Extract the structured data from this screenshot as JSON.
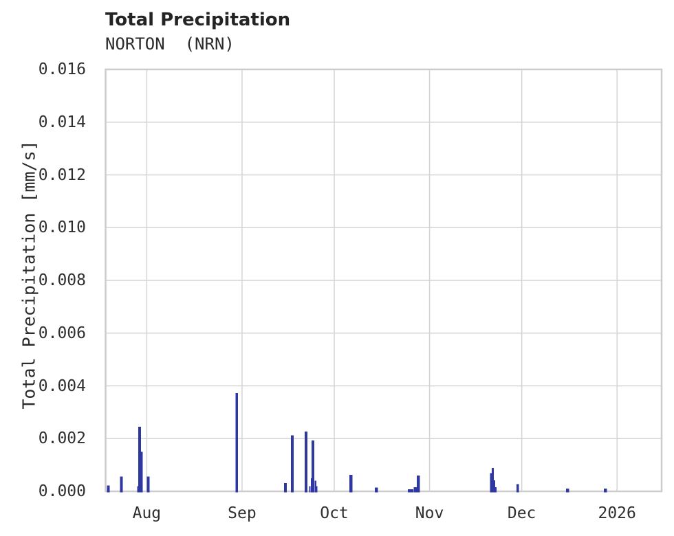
{
  "header": {
    "title": "Total Precipitation",
    "subtitle": "NORTON  (NRN)"
  },
  "chart_data": {
    "type": "bar",
    "title": "Total Precipitation",
    "subtitle": "NORTON  (NRN)",
    "xlabel": "",
    "ylabel": "Total Precipitation [mm/s]",
    "grid": true,
    "legend": false,
    "y_axis": {
      "min": 0,
      "max": 0.016,
      "tick_step": 0.002,
      "tick_labels": [
        "0.000",
        "0.002",
        "0.004",
        "0.006",
        "0.008",
        "0.010",
        "0.012",
        "0.014",
        "0.016"
      ]
    },
    "x_axis": {
      "tick_labels": [
        "Aug",
        "Sep",
        "Oct",
        "Nov",
        "Dec",
        "2026"
      ],
      "tick_day_offsets": [
        0,
        31,
        61,
        92,
        122,
        153
      ],
      "domain_days": [
        -13.4,
        167.5
      ],
      "reference": "day offset 0 = Aug 1, 2025"
    },
    "colors": {
      "bar": "#2e38a0",
      "grid": "#d4d4d4",
      "border": "#cccccc",
      "text": "#2f2f2f"
    },
    "points": [
      {
        "date": "2025-07-19",
        "day": -12.5,
        "value": 0.00022,
        "w": 0.9
      },
      {
        "date": "2025-07-24",
        "day": -8.2,
        "value": 0.00056,
        "w": 0.9
      },
      {
        "date": "2025-07-29",
        "day": -2.9,
        "value": 0.0002,
        "w": 0.45
      },
      {
        "date": "2025-07-30",
        "day": -2.3,
        "value": 0.00245,
        "w": 0.9
      },
      {
        "date": "2025-07-30",
        "day": -1.6,
        "value": 0.0015,
        "w": 0.56
      },
      {
        "date": "2025-08-01",
        "day": 0.5,
        "value": 0.00056,
        "w": 0.9
      },
      {
        "date": "2025-08-30",
        "day": 29.3,
        "value": 0.00373,
        "w": 0.8
      },
      {
        "date": "2025-09-15",
        "day": 45.1,
        "value": 0.00031,
        "w": 0.9
      },
      {
        "date": "2025-09-17",
        "day": 47.3,
        "value": 0.00212,
        "w": 0.9
      },
      {
        "date": "2025-09-22",
        "day": 51.8,
        "value": 0.00227,
        "w": 0.9
      },
      {
        "date": "2025-09-23",
        "day": 53.1,
        "value": 0.0002,
        "w": 0.45
      },
      {
        "date": "2025-09-23",
        "day": 53.6,
        "value": 0.0005,
        "w": 0.45
      },
      {
        "date": "2025-09-24",
        "day": 54.1,
        "value": 0.00193,
        "w": 0.9
      },
      {
        "date": "2025-09-24",
        "day": 54.9,
        "value": 0.0004,
        "w": 0.56
      },
      {
        "date": "2025-09-25",
        "day": 55.3,
        "value": 0.0002,
        "w": 0.45
      },
      {
        "date": "2025-10-06",
        "day": 66.4,
        "value": 0.00062,
        "w": 1.0
      },
      {
        "date": "2025-10-14",
        "day": 74.7,
        "value": 0.00014,
        "w": 1.1
      },
      {
        "date": "2025-10-25",
        "day": 85.8,
        "value": 8e-05,
        "w": 1.8
      },
      {
        "date": "2025-10-27",
        "day": 87.4,
        "value": 0.00016,
        "w": 1.1
      },
      {
        "date": "2025-10-28",
        "day": 88.4,
        "value": 0.0006,
        "w": 1.0
      },
      {
        "date": "2025-11-21",
        "day": 112.0,
        "value": 0.00069,
        "w": 0.56
      },
      {
        "date": "2025-11-21",
        "day": 112.6,
        "value": 0.00088,
        "w": 0.67
      },
      {
        "date": "2025-11-22",
        "day": 113.1,
        "value": 0.00042,
        "w": 0.45
      },
      {
        "date": "2025-11-22",
        "day": 113.5,
        "value": 0.00016,
        "w": 0.56
      },
      {
        "date": "2025-11-30",
        "day": 120.7,
        "value": 0.00028,
        "w": 0.78
      },
      {
        "date": "2025-12-17",
        "day": 136.9,
        "value": 0.0001,
        "w": 1.0
      },
      {
        "date": "2025-12-29",
        "day": 149.2,
        "value": 0.0001,
        "w": 1.0
      }
    ]
  }
}
